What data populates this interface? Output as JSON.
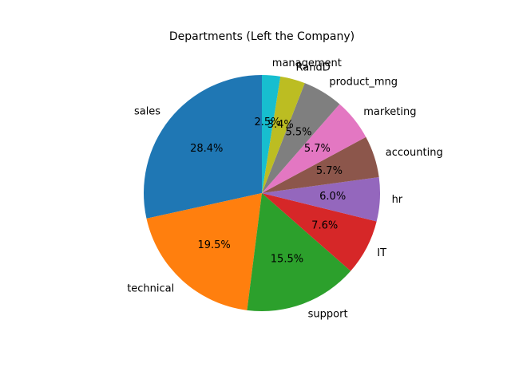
{
  "chart_data": {
    "type": "pie",
    "title": "Departments (Left the Company)",
    "start_angle_deg": 90,
    "direction": "counterclockwise",
    "slices": [
      {
        "label": "sales",
        "value": 28.4,
        "pct_text": "28.4%",
        "color": "#1f77b4"
      },
      {
        "label": "technical",
        "value": 19.5,
        "pct_text": "19.5%",
        "color": "#ff7f0e"
      },
      {
        "label": "support",
        "value": 15.5,
        "pct_text": "15.5%",
        "color": "#2ca02c"
      },
      {
        "label": "IT",
        "value": 7.6,
        "pct_text": "7.6%",
        "color": "#d62728"
      },
      {
        "label": "hr",
        "value": 6.0,
        "pct_text": "6.0%",
        "color": "#9467bd"
      },
      {
        "label": "accounting",
        "value": 5.7,
        "pct_text": "5.7%",
        "color": "#8c564b"
      },
      {
        "label": "marketing",
        "value": 5.7,
        "pct_text": "5.7%",
        "color": "#e377c2"
      },
      {
        "label": "product_mng",
        "value": 5.5,
        "pct_text": "5.5%",
        "color": "#7f7f7f"
      },
      {
        "label": "RandD",
        "value": 3.4,
        "pct_text": "3.4%",
        "color": "#bcbd22"
      },
      {
        "label": "management",
        "value": 2.5,
        "pct_text": "2.5%",
        "color": "#17becf"
      }
    ]
  }
}
